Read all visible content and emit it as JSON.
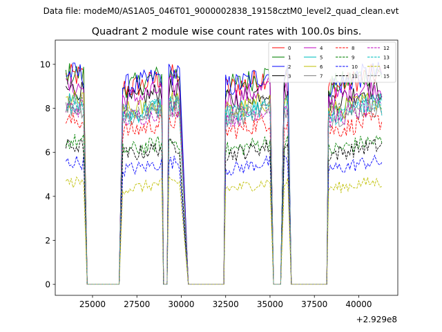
{
  "figure": {
    "suptitle": "Data file: modeM0/AS1A05_046T01_9000002838_19158cztM0_level2_quad_clean.evt",
    "title": "Quadrant 2 module wise count rates with 100.0s bins.",
    "offset_text": "+2.929e8"
  },
  "chart_data": {
    "type": "line",
    "title": "Quadrant 2 module wise count rates with 100.0s bins.",
    "xlabel": "",
    "ylabel": "",
    "xlim": [
      22900,
      42200
    ],
    "ylim": [
      -0.5,
      11.1
    ],
    "x_offset": 292900000,
    "xticks": [
      25000,
      27500,
      30000,
      32500,
      35000,
      37500,
      40000
    ],
    "xtick_labels": [
      "25000",
      "27500",
      "30000",
      "32500",
      "35000",
      "37500",
      "40000"
    ],
    "yticks": [
      0,
      2,
      4,
      6,
      8,
      10
    ],
    "ytick_labels": [
      "0",
      "2",
      "4",
      "6",
      "8",
      "10"
    ],
    "grid": false,
    "legend_position": "top-right",
    "legend_columns": 4,
    "bin_seconds": 100,
    "on_segments": [
      [
        23500,
        24500
      ],
      [
        26700,
        28900
      ],
      [
        29300,
        29900
      ],
      [
        32500,
        35000
      ],
      [
        35800,
        36000
      ],
      [
        38300,
        41300
      ]
    ],
    "zero_segments": [
      [
        24700,
        26500
      ],
      [
        29000,
        29200
      ],
      [
        30400,
        32400
      ],
      [
        35200,
        35600
      ],
      [
        36200,
        38200
      ]
    ],
    "series": [
      {
        "name": "0",
        "color": "#ff0000",
        "dash": "solid",
        "level": 9.2
      },
      {
        "name": "1",
        "color": "#008000",
        "dash": "solid",
        "level": 9.3
      },
      {
        "name": "2",
        "color": "#0000ff",
        "dash": "solid",
        "level": 9.3
      },
      {
        "name": "3",
        "color": "#000000",
        "dash": "solid",
        "level": 8.6
      },
      {
        "name": "4",
        "color": "#bf00bf",
        "dash": "solid",
        "level": 8.7
      },
      {
        "name": "5",
        "color": "#00bfbf",
        "dash": "solid",
        "level": 8.0
      },
      {
        "name": "6",
        "color": "#bfbf00",
        "dash": "solid",
        "level": 8.1
      },
      {
        "name": "7",
        "color": "#808080",
        "dash": "solid",
        "level": 7.8
      },
      {
        "name": "8",
        "color": "#ff0000",
        "dash": "dashed",
        "level": 7.2
      },
      {
        "name": "9",
        "color": "#008000",
        "dash": "dashed",
        "level": 6.3
      },
      {
        "name": "10",
        "color": "#0000ff",
        "dash": "dashed",
        "level": 5.4
      },
      {
        "name": "11",
        "color": "#000000",
        "dash": "dashed",
        "level": 6.1
      },
      {
        "name": "12",
        "color": "#bf00bf",
        "dash": "dashed",
        "level": 7.8
      },
      {
        "name": "13",
        "color": "#00bfbf",
        "dash": "dashed",
        "level": 7.9
      },
      {
        "name": "14",
        "color": "#bfbf00",
        "dash": "dashed",
        "level": 4.5
      },
      {
        "name": "15",
        "color": "#808080",
        "dash": "dashed",
        "level": 8.0
      }
    ]
  }
}
